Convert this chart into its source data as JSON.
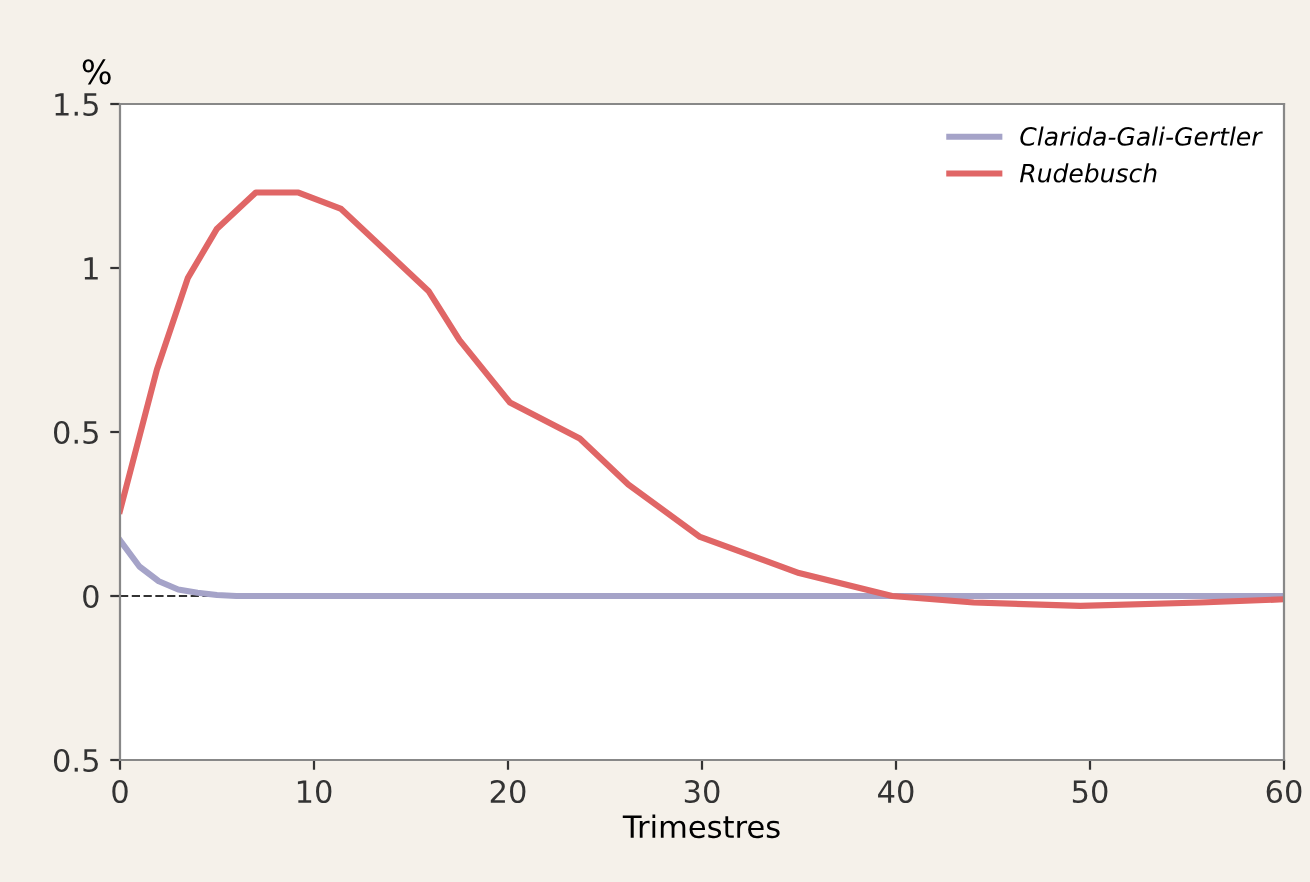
{
  "chart_data": {
    "type": "line",
    "xlabel": "Trimestres",
    "ylabel": "%",
    "xlim": [
      0,
      60
    ],
    "xticks": [
      0,
      10,
      20,
      30,
      40,
      50,
      60
    ],
    "ylim": [
      -0.5,
      1.5
    ],
    "yticks": [
      {
        "value": -0.5,
        "label": "0.5"
      },
      0,
      0.5,
      1,
      1.5
    ],
    "grid": false,
    "legend": "top right",
    "marker": "none",
    "line_style": "solid",
    "ref_lines": [
      {
        "axis": "y",
        "value": 0,
        "color": "#333333",
        "line_style": "dashed"
      }
    ],
    "series": [
      {
        "name": "Clarida-Gali-Gertler",
        "color": "#a5a3c8",
        "x": [
          0,
          1,
          2,
          3,
          4,
          5,
          6,
          10,
          20,
          30,
          40,
          50,
          60
        ],
        "values": [
          0.17,
          0.09,
          0.045,
          0.02,
          0.01,
          0.003,
          0,
          0,
          0,
          0,
          0,
          0,
          0
        ]
      },
      {
        "name": "Rudebusch",
        "color": "#e06666",
        "x": [
          0,
          1.9,
          3.5,
          5,
          7,
          9.2,
          11.4,
          15.9,
          17.5,
          20.1,
          23.7,
          26.2,
          29.9,
          35,
          39.8,
          44,
          49.5,
          55.7,
          60
        ],
        "values": [
          0.26,
          0.69,
          0.97,
          1.12,
          1.23,
          1.23,
          1.18,
          0.93,
          0.78,
          0.59,
          0.48,
          0.34,
          0.18,
          0.07,
          0,
          -0.02,
          -0.03,
          -0.02,
          -0.01
        ]
      }
    ]
  }
}
